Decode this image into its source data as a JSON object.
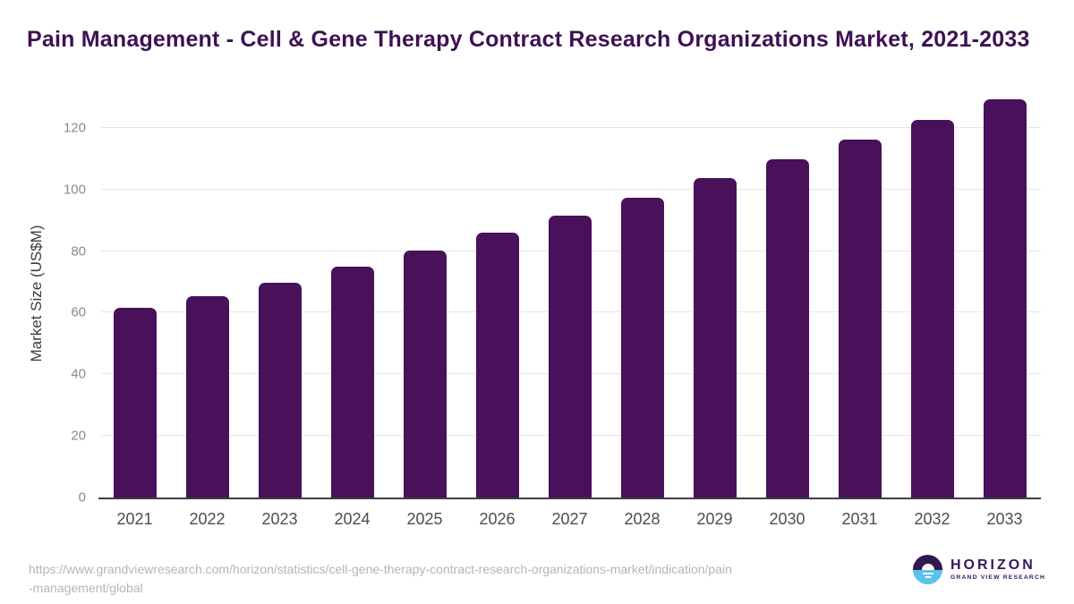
{
  "title": "Pain Management - Cell & Gene Therapy Contract Research Organizations Market, 2021-2033",
  "chart_data": {
    "type": "bar",
    "title": "Pain Management - Cell & Gene Therapy Contract Research Organizations Market, 2021-2033",
    "categories": [
      "2021",
      "2022",
      "2023",
      "2024",
      "2025",
      "2026",
      "2027",
      "2028",
      "2029",
      "2030",
      "2031",
      "2032",
      "2033"
    ],
    "values": [
      61.7,
      65.3,
      69.7,
      74.9,
      80.1,
      85.9,
      91.4,
      97.3,
      103.8,
      109.9,
      116.2,
      122.5,
      129.3
    ],
    "xlabel": "",
    "ylabel": "Market Size (US$M)",
    "ylim": [
      0,
      133
    ],
    "yticks": [
      0,
      20,
      40,
      60,
      80,
      100,
      120
    ],
    "grid": "horizontal-only",
    "legend": "none",
    "bar_color": "#481159"
  },
  "colors": {
    "background": "#ffffff",
    "bar": "#481159",
    "title_text": "#3e1153",
    "gridline": "#e7e7e7",
    "axis_line": "#3f3f3f",
    "y_tick_text": "#8a8a8a",
    "x_tick_text": "#4d4d4d",
    "source_text": "#b5b5b5",
    "logo_navy": "#32195a",
    "logo_blue": "#5cc3ef"
  },
  "source": {
    "lines": [
      "https://www.grandviewresearch.com/horizon/statistics/cell-gene-therapy-contract-research-organizations-market/indication/pain",
      "-management/global"
    ]
  },
  "logo": {
    "brand": "HORIZON",
    "subtitle": "GRAND VIEW RESEARCH"
  }
}
